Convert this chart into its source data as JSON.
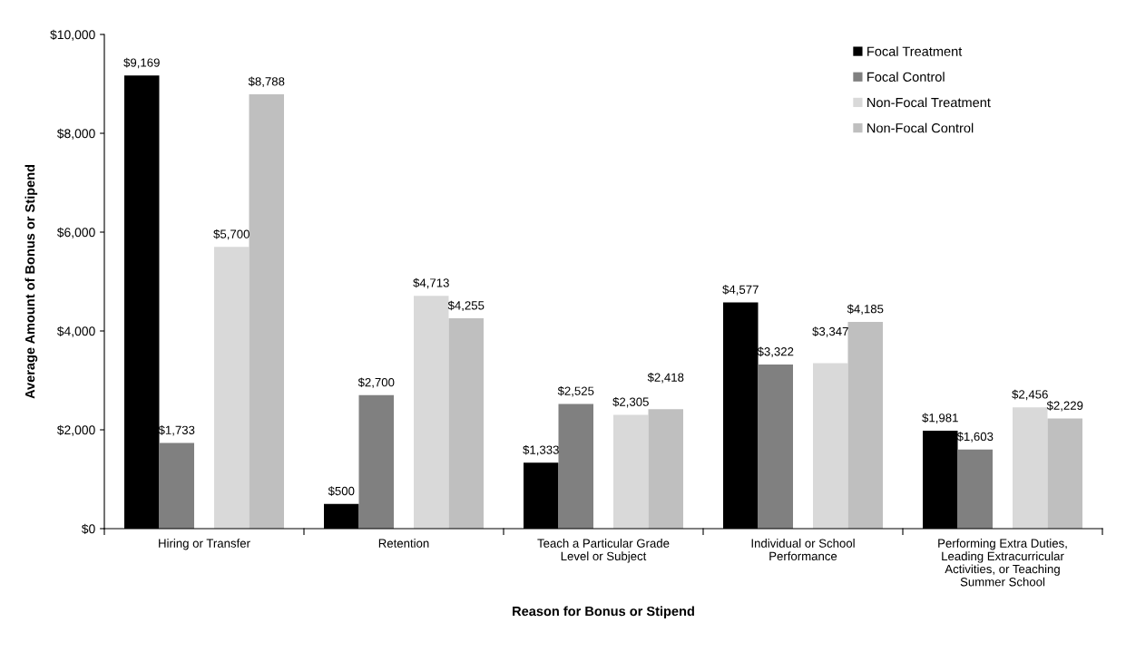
{
  "chart_data": {
    "type": "bar",
    "xlabel": "Reason for Bonus or Stipend",
    "ylabel": "Average Amount of Bonus or Stipend",
    "categories": [
      "Hiring or Transfer",
      "Retention",
      "Teach a Particular Grade\nLevel or Subject",
      "Individual or School\nPerformance",
      "Performing Extra Duties,\nLeading Extracurricular\nActivities, or Teaching\nSummer School"
    ],
    "series": [
      {
        "name": "Focal Treatment",
        "color": "#000000",
        "values": [
          9169,
          500,
          1333,
          4577,
          1981
        ],
        "value_labels": [
          "$9,169",
          "$500",
          "$1,333",
          "$4,577",
          "$1,981"
        ]
      },
      {
        "name": "Focal Control",
        "color": "#808080",
        "values": [
          1733,
          2700,
          2525,
          3322,
          1603
        ],
        "value_labels": [
          "$1,733",
          "$2,700",
          "$2,525",
          "$3,322",
          "$1,603"
        ]
      },
      {
        "name": "Non-Focal Treatment",
        "color": "#d9d9d9",
        "values": [
          5700,
          4713,
          2305,
          3347,
          2456
        ],
        "value_labels": [
          "$5,700",
          "$4,713",
          "$2,305",
          "$3,347",
          "$2,456"
        ]
      },
      {
        "name": "Non-Focal Control",
        "color": "#bfbfbf",
        "values": [
          8788,
          4255,
          2418,
          4185,
          2229
        ],
        "value_labels": [
          "$8,788",
          "$4,255",
          "$2,418",
          "$4,185",
          "$2,229"
        ]
      }
    ],
    "ylim": [
      0,
      10000
    ],
    "yticks": [
      {
        "value": 0,
        "label": "$0"
      },
      {
        "value": 2000,
        "label": "$2,000"
      },
      {
        "value": 4000,
        "label": "$4,000"
      },
      {
        "value": 6000,
        "label": "$6,000"
      },
      {
        "value": 8000,
        "label": "$8,000"
      },
      {
        "value": 10000,
        "label": "$10,000"
      }
    ],
    "grid": false,
    "legend": "top right"
  }
}
